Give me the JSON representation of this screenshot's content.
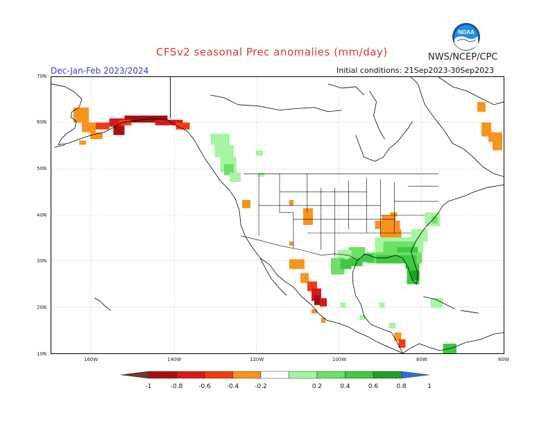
{
  "title": "CFSv2 seasonal Prec anomalies (mm/day)",
  "agency": "NWS/NCEP/CPC",
  "logo_text": "NOAA",
  "season": "Dec-Jan-Feb 2023/2024",
  "initial_conditions": "Initial conditions: 21Sep2023-30Sep2023",
  "lat_labels": [
    "70N",
    "60N",
    "50N",
    "40N",
    "30N",
    "20N",
    "10N"
  ],
  "lon_labels": [
    "160W",
    "140W",
    "120W",
    "100W",
    "80W",
    "60W"
  ],
  "colorbar": {
    "labels": [
      "-1",
      "-0.8",
      "-0.6",
      "-0.4",
      "-0.2",
      "0.2",
      "0.4",
      "0.6",
      "0.8",
      "1"
    ],
    "colors": [
      "#6b3a2a",
      "#a50f0f",
      "#d7191c",
      "#f03c13",
      "#f7941d",
      "#ffffff",
      "#a6f5a0",
      "#6ce067",
      "#3fc940",
      "#1f9e28",
      "#2f6fd6"
    ]
  },
  "anomaly_regions": [
    {
      "name": "Alaska west",
      "sign": "dry"
    },
    {
      "name": "Gulf of Alaska coast",
      "sign": "dry"
    },
    {
      "name": "Pacific Northwest coast",
      "sign": "wet"
    },
    {
      "name": "Southeast US",
      "sign": "wet"
    },
    {
      "name": "Tennessee Valley",
      "sign": "dry"
    },
    {
      "name": "Mexico Pacific coast",
      "sign": "dry"
    },
    {
      "name": "Northeast Canada",
      "sign": "dry"
    }
  ]
}
